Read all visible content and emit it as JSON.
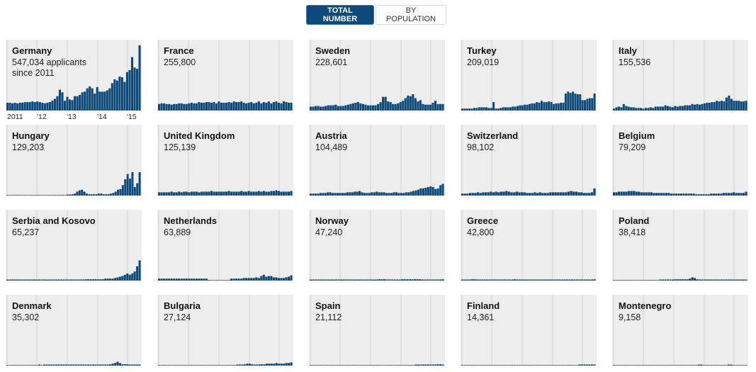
{
  "toggle": {
    "total_label": "TOTAL NUMBER",
    "population_label": "BY POPULATION",
    "active": "total"
  },
  "colors": {
    "bar": "#0d4a7a",
    "panel_bg": "#ededed",
    "gridline": "#d4d4d4",
    "active_button": "#0d4a7a"
  },
  "chart_data": {
    "type": "bar",
    "title": "",
    "xlabel": "",
    "ylabel": "",
    "x_range": [
      "2011-01",
      "2015-06"
    ],
    "x_tick_labels": [
      "2011",
      "'12",
      "'13",
      "'14",
      "'15"
    ],
    "grid": true,
    "y_scale": "shared across panels, relative units (Germany peak = 100)",
    "ylim": [
      0,
      100
    ],
    "first_panel_note": "547,034 applicants since 2011",
    "panels": [
      {
        "country": "Germany",
        "total": "547,034 applicants since 2011",
        "values": [
          12,
          12,
          11,
          12,
          11,
          12,
          12,
          13,
          13,
          13,
          14,
          13,
          14,
          13,
          12,
          11,
          12,
          13,
          15,
          18,
          22,
          32,
          28,
          15,
          21,
          17,
          16,
          22,
          22,
          24,
          28,
          29,
          34,
          37,
          34,
          26,
          36,
          29,
          29,
          29,
          31,
          34,
          42,
          48,
          46,
          52,
          51,
          44,
          59,
          62,
          82,
          66,
          64,
          100
        ]
      },
      {
        "country": "France",
        "total": "255,800",
        "values": [
          10,
          11,
          11,
          10,
          10,
          9,
          10,
          10,
          11,
          11,
          10,
          10,
          11,
          12,
          11,
          11,
          13,
          12,
          12,
          13,
          13,
          12,
          13,
          11,
          14,
          12,
          12,
          12,
          13,
          12,
          14,
          13,
          13,
          14,
          12,
          11,
          12,
          13,
          11,
          12,
          14,
          11,
          13,
          12,
          14,
          11,
          13,
          14,
          12,
          11,
          14,
          13,
          12,
          12
        ]
      },
      {
        "country": "Sweden",
        "total": "228,601",
        "values": [
          6,
          6,
          7,
          7,
          6,
          6,
          7,
          8,
          8,
          8,
          9,
          7,
          7,
          7,
          8,
          9,
          10,
          11,
          12,
          13,
          11,
          10,
          9,
          8,
          8,
          8,
          8,
          10,
          13,
          21,
          21,
          14,
          13,
          10,
          10,
          11,
          13,
          15,
          19,
          23,
          22,
          25,
          19,
          14,
          16,
          10,
          9,
          9,
          9,
          12,
          15,
          10,
          10,
          10
        ]
      },
      {
        "country": "Turkey",
        "total": "209,019",
        "values": [
          3,
          3,
          3,
          3,
          3,
          4,
          4,
          5,
          5,
          5,
          5,
          4,
          4,
          13,
          3,
          3,
          4,
          5,
          5,
          5,
          5,
          6,
          6,
          7,
          8,
          8,
          9,
          9,
          10,
          11,
          11,
          13,
          12,
          15,
          13,
          13,
          14,
          13,
          10,
          11,
          11,
          12,
          12,
          26,
          29,
          27,
          29,
          26,
          25,
          25,
          16,
          16,
          18,
          19,
          19,
          26
        ]
      },
      {
        "country": "Italy",
        "total": "155,536",
        "values": [
          3,
          5,
          6,
          5,
          10,
          7,
          6,
          5,
          5,
          4,
          4,
          4,
          3,
          4,
          4,
          5,
          4,
          6,
          6,
          6,
          6,
          8,
          7,
          6,
          5,
          7,
          6,
          7,
          7,
          8,
          8,
          8,
          10,
          9,
          10,
          9,
          10,
          11,
          12,
          12,
          13,
          13,
          15,
          14,
          15,
          14,
          20,
          23,
          18,
          15,
          15,
          15,
          14,
          14,
          15
        ]
      },
      {
        "country": "Hungary",
        "total": "129,203",
        "values": [
          0,
          0,
          0,
          0,
          0,
          0,
          0,
          0,
          0,
          0,
          0,
          0,
          0,
          0,
          0,
          0,
          0,
          0,
          0,
          0,
          0,
          0,
          0,
          0,
          0,
          1,
          1,
          2,
          3,
          6,
          8,
          9,
          6,
          3,
          2,
          2,
          2,
          2,
          3,
          3,
          2,
          2,
          2,
          3,
          4,
          6,
          9,
          10,
          16,
          25,
          33,
          26,
          36,
          13,
          19,
          36
        ]
      },
      {
        "country": "United Kingdom",
        "total": "125,139",
        "values": [
          5,
          5,
          5,
          5,
          5,
          6,
          5,
          5,
          6,
          5,
          6,
          6,
          5,
          6,
          6,
          6,
          5,
          6,
          6,
          6,
          6,
          7,
          6,
          6,
          6,
          6,
          6,
          6,
          7,
          6,
          6,
          6,
          6,
          7,
          6,
          6,
          7,
          6,
          6,
          6,
          7,
          6,
          7,
          6,
          6,
          7,
          7,
          8,
          7,
          6,
          6,
          6,
          6,
          7
        ]
      },
      {
        "country": "Austria",
        "total": "104,489",
        "values": [
          3,
          3,
          3,
          3,
          4,
          4,
          4,
          5,
          5,
          4,
          4,
          4,
          4,
          4,
          4,
          5,
          5,
          5,
          6,
          6,
          7,
          5,
          4,
          4,
          4,
          5,
          5,
          6,
          5,
          5,
          5,
          4,
          4,
          4,
          5,
          5,
          4,
          4,
          4,
          5,
          5,
          6,
          7,
          8,
          9,
          11,
          11,
          12,
          13,
          14,
          13,
          10,
          11,
          16,
          18
        ]
      },
      {
        "country": "Switzerland",
        "total": "98,102",
        "values": [
          3,
          3,
          3,
          4,
          4,
          4,
          5,
          4,
          5,
          5,
          5,
          6,
          5,
          6,
          5,
          6,
          6,
          7,
          6,
          5,
          5,
          6,
          5,
          5,
          5,
          4,
          4,
          4,
          5,
          4,
          5,
          4,
          4,
          4,
          5,
          5,
          5,
          5,
          5,
          5,
          5,
          6,
          7,
          6,
          6,
          5,
          5,
          4,
          4,
          4,
          5,
          11
        ]
      },
      {
        "country": "Belgium",
        "total": "79,209",
        "values": [
          5,
          5,
          6,
          6,
          6,
          6,
          7,
          7,
          7,
          6,
          6,
          5,
          5,
          5,
          5,
          5,
          4,
          4,
          4,
          4,
          4,
          4,
          4,
          3,
          3,
          3,
          3,
          3,
          3,
          3,
          3,
          3,
          3,
          2,
          2,
          2,
          2,
          2,
          2,
          3,
          3,
          3,
          3,
          3,
          4,
          4,
          4,
          4,
          5,
          4,
          4,
          4,
          4,
          6
        ]
      },
      {
        "country": "Serbia and Kosovo",
        "total": "65,237",
        "values": [
          1,
          1,
          1,
          1,
          1,
          1,
          1,
          1,
          1,
          1,
          1,
          1,
          1,
          1,
          1,
          1,
          1,
          1,
          1,
          1,
          1,
          1,
          1,
          1,
          1,
          1,
          1,
          1,
          1,
          1,
          1,
          1,
          2,
          2,
          2,
          2,
          2,
          2,
          2,
          2,
          3,
          3,
          3,
          3,
          4,
          5,
          6,
          7,
          9,
          11,
          9,
          11,
          14,
          22,
          31
        ]
      },
      {
        "country": "Netherlands",
        "total": "63,889",
        "values": [
          3,
          3,
          3,
          3,
          3,
          3,
          3,
          3,
          3,
          3,
          3,
          3,
          3,
          3,
          3,
          3,
          3,
          3,
          3,
          3,
          0,
          0,
          0,
          0,
          0,
          0,
          0,
          0,
          0,
          3,
          3,
          3,
          3,
          3,
          4,
          4,
          4,
          4,
          4,
          5,
          4,
          7,
          9,
          6,
          7,
          7,
          5,
          5,
          4,
          4,
          4,
          5,
          6,
          8
        ]
      },
      {
        "country": "Norway",
        "total": "47,240",
        "values": [
          1,
          1,
          1,
          1,
          1,
          1,
          1,
          1,
          1,
          1,
          1,
          1,
          1,
          1,
          1,
          1,
          1,
          1,
          1,
          1,
          1,
          1,
          1,
          1,
          1,
          1,
          1,
          2,
          2,
          2,
          1,
          1,
          1,
          1,
          1,
          1,
          2,
          2,
          2,
          2,
          2,
          2,
          2,
          2,
          1,
          1,
          1,
          1,
          1,
          1,
          1,
          1,
          2
        ]
      },
      {
        "country": "Greece",
        "total": "42,800",
        "values": [
          1,
          1,
          1,
          1,
          2,
          2,
          1,
          1,
          1,
          1,
          1,
          1,
          1,
          1,
          1,
          1,
          1,
          1,
          1,
          1,
          1,
          2,
          1,
          1,
          1,
          1,
          1,
          1,
          1,
          1,
          1,
          1,
          1,
          1,
          1,
          1,
          1,
          1,
          1,
          1,
          1,
          1,
          1,
          1,
          1,
          1,
          1,
          1,
          1,
          1,
          1,
          1,
          1,
          2
        ]
      },
      {
        "country": "Poland",
        "total": "38,418",
        "values": [
          0,
          0,
          0,
          0,
          0,
          0,
          0,
          0,
          0,
          0,
          0,
          0,
          0,
          0,
          0,
          0,
          0,
          0,
          0,
          1,
          1,
          1,
          1,
          1,
          1,
          2,
          2,
          2,
          2,
          2,
          2,
          3,
          5,
          4,
          2,
          1,
          1,
          1,
          1,
          1,
          1,
          1,
          1,
          1,
          1,
          1,
          1,
          1,
          1,
          1,
          1,
          1,
          1,
          1,
          1
        ]
      },
      {
        "country": "Denmark",
        "total": "35,302",
        "values": [
          0,
          0,
          0,
          0,
          0,
          0,
          0,
          0,
          0,
          0,
          0,
          0,
          0,
          1,
          0,
          1,
          1,
          1,
          1,
          1,
          1,
          1,
          1,
          1,
          1,
          1,
          1,
          1,
          1,
          1,
          1,
          1,
          1,
          1,
          1,
          1,
          1,
          1,
          1,
          1,
          1,
          1,
          2,
          3,
          4,
          6,
          4,
          2,
          2,
          2,
          1,
          1,
          1,
          1,
          1
        ]
      },
      {
        "country": "Bulgaria",
        "total": "27,124",
        "values": [
          0,
          0,
          0,
          0,
          0,
          0,
          0,
          0,
          0,
          0,
          0,
          0,
          0,
          0,
          0,
          0,
          0,
          0,
          0,
          0,
          0,
          0,
          0,
          0,
          0,
          0,
          0,
          0,
          0,
          0,
          0,
          0,
          1,
          1,
          1,
          2,
          3,
          3,
          2,
          1,
          1,
          2,
          2,
          2,
          3,
          3,
          3,
          3,
          4,
          3,
          3,
          3,
          4,
          4,
          5
        ]
      },
      {
        "country": "Spain",
        "total": "21,112",
        "values": [
          0,
          0,
          0,
          0,
          0,
          0,
          0,
          0,
          0,
          0,
          0,
          0,
          0,
          0,
          0,
          0,
          0,
          0,
          0,
          0,
          0,
          0,
          0,
          0,
          0,
          0,
          0,
          0,
          0,
          0,
          0,
          0,
          0,
          0,
          0,
          0,
          0,
          0,
          0,
          0,
          0,
          0,
          0,
          1,
          1,
          1,
          1,
          1,
          1,
          1,
          1,
          1,
          2,
          2,
          1
        ]
      },
      {
        "country": "Finland",
        "total": "14,361",
        "values": [
          0,
          0,
          0,
          0,
          0,
          0,
          0,
          0,
          0,
          0,
          0,
          0,
          0,
          0,
          0,
          0,
          0,
          0,
          0,
          0,
          0,
          0,
          0,
          0,
          0,
          0,
          0,
          0,
          0,
          0,
          0,
          0,
          0,
          0,
          0,
          0,
          0,
          0,
          0,
          0,
          0,
          0,
          0,
          0,
          0,
          0,
          0,
          1,
          1,
          1,
          1,
          1,
          1,
          1
        ]
      },
      {
        "country": "Montenegro",
        "total": "9,158",
        "values": [
          0,
          0,
          0,
          0,
          0,
          0,
          0,
          0,
          0,
          0,
          0,
          0,
          0,
          0,
          0,
          0,
          0,
          0,
          0,
          0,
          0,
          0,
          0,
          0,
          0,
          0,
          0,
          0,
          0,
          0,
          0,
          0,
          0,
          0,
          1,
          1,
          0,
          0,
          0,
          0,
          0,
          0,
          0,
          0,
          0,
          0,
          1,
          1,
          0,
          0,
          0,
          0,
          0,
          0
        ]
      }
    ]
  }
}
